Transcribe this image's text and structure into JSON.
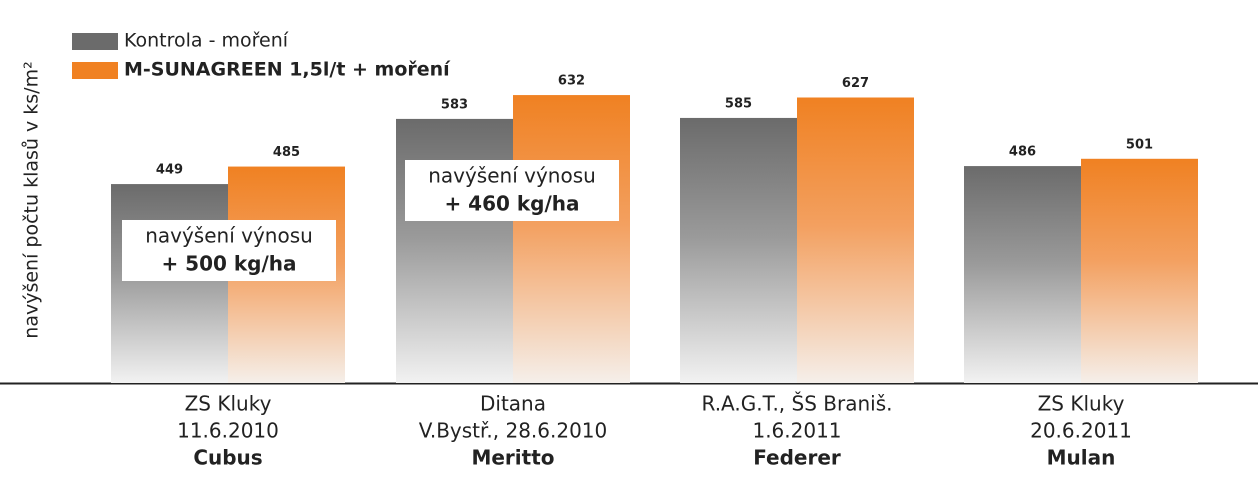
{
  "chart_data": {
    "type": "bar",
    "y_label": "navýšení počtu klasů v ks/m²",
    "categories": [
      [
        "ZS Kluky",
        "11.6.2010",
        "Cubus"
      ],
      [
        "Ditana",
        "V.Bystř., 28.6.2010",
        "Meritto"
      ],
      [
        "R.A.G.T., ŠS Braniš.",
        "1.6.2011",
        "Federer"
      ],
      [
        "ZS Kluky",
        "20.6.2011",
        "Mulan"
      ]
    ],
    "series": [
      {
        "name": "Kontrola - moření",
        "color": "#6b6b6b",
        "values": [
          449,
          583,
          585,
          486
        ]
      },
      {
        "name": "M-SUNAGREEN 1,5l/t +  moření",
        "color": "#f08122",
        "values": [
          485,
          632,
          627,
          501
        ]
      }
    ],
    "annotations": [
      [
        "navýšení výnosu",
        "+ 500 kg/ha"
      ],
      [
        "navýšení výnosu",
        "+ 460 kg/ha"
      ]
    ],
    "ylim": [
      40,
      700
    ]
  }
}
